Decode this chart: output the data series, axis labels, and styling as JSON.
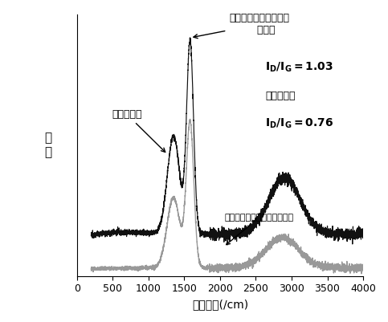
{
  "xlabel": "拉曼位移(/cm)",
  "ylabel": "强度",
  "xlim": [
    0,
    4000
  ],
  "x_ticks": [
    0,
    500,
    1000,
    1500,
    2000,
    2500,
    3000,
    3500,
    4000
  ],
  "annot_top_line1": "具有炭缺陷位点结构的",
  "annot_top_line2": "生物炭",
  "annot_idg_black": "I₂/I₂=1.03",
  "annot_yuanzhuang": "原状生物炭",
  "annot_idg_gray": "I₂/I₂=0.76",
  "annot_left": "原状生物炭",
  "annot_bottom": "具有炭缺陷位点结构的生物炭",
  "black_color": "#111111",
  "gray_color": "#999999",
  "bg_color": "#ffffff"
}
